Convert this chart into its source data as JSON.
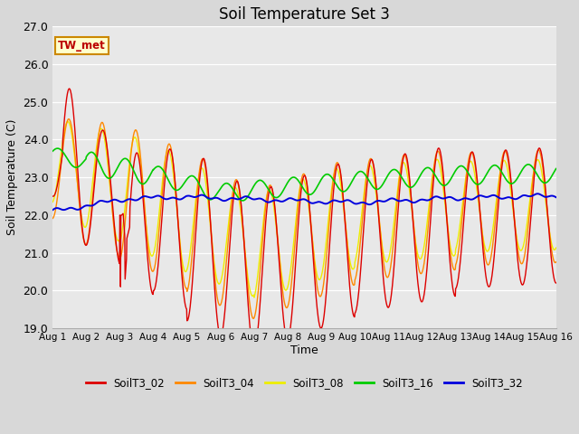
{
  "title": "Soil Temperature Set 3",
  "xlabel": "Time",
  "ylabel": "Soil Temperature (C)",
  "ylim": [
    19.0,
    27.0
  ],
  "yticks": [
    19.0,
    20.0,
    21.0,
    22.0,
    23.0,
    24.0,
    25.0,
    26.0,
    27.0
  ],
  "xlim_days": [
    0,
    15
  ],
  "xtick_labels": [
    "Aug 1",
    "Aug 2",
    "Aug 3",
    "Aug 4",
    "Aug 5",
    "Aug 6",
    "Aug 7",
    "Aug 8",
    "Aug 9",
    "Aug 10",
    "Aug 11",
    "Aug 12",
    "Aug 13",
    "Aug 14",
    "Aug 15",
    "Aug 16"
  ],
  "series_colors": {
    "SoilT3_02": "#dd0000",
    "SoilT3_04": "#ff8800",
    "SoilT3_08": "#eeee00",
    "SoilT3_16": "#00cc00",
    "SoilT3_32": "#0000dd"
  },
  "annotation_text": "TW_met",
  "annotation_box_color": "#ffffcc",
  "annotation_box_edge": "#cc8800",
  "bg_color": "#d8d8d8",
  "plot_bg_color": "#e8e8e8"
}
